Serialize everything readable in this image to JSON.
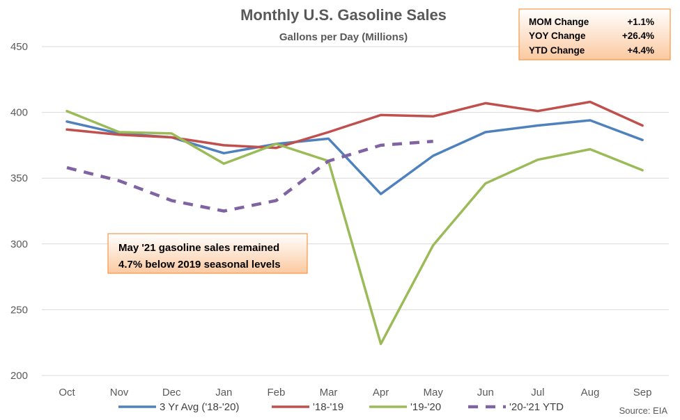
{
  "chart_data": {
    "type": "line",
    "title": "Monthly U.S. Gasoline Sales",
    "subtitle": "Gallons per Day (Millions)",
    "categories": [
      "Oct",
      "Nov",
      "Dec",
      "Jan",
      "Feb",
      "Mar",
      "Apr",
      "May",
      "Jun",
      "Jul",
      "Aug",
      "Sep"
    ],
    "ylim": [
      200,
      450
    ],
    "yticks": [
      200,
      250,
      300,
      350,
      400,
      450
    ],
    "grid": true,
    "legend_placement": "bottom",
    "series": [
      {
        "name": "3 Yr Avg ('18-'20)",
        "color": "#4f81bd",
        "dashed": false,
        "values": [
          393,
          384,
          381,
          369,
          376,
          380,
          338,
          367,
          385,
          390,
          394,
          379
        ]
      },
      {
        "name": "'18-'19",
        "color": "#c0504d",
        "dashed": false,
        "values": [
          387,
          383,
          381,
          375,
          373,
          385,
          398,
          397,
          407,
          401,
          408,
          390
        ]
      },
      {
        "name": "'19-'20",
        "color": "#9bbb59",
        "dashed": false,
        "values": [
          401,
          385,
          384,
          361,
          376,
          363,
          224,
          299,
          346,
          364,
          372,
          356
        ]
      },
      {
        "name": "'20-'21 YTD",
        "color": "#8064a2",
        "dashed": true,
        "values": [
          358,
          348,
          333,
          325,
          333,
          363,
          375,
          378,
          null,
          null,
          null,
          null
        ]
      }
    ],
    "summary_box": [
      {
        "label": "MOM Change",
        "value": "+1.1%"
      },
      {
        "label": "YOY Change",
        "value": "+26.4%"
      },
      {
        "label": "YTD Change",
        "value": "+4.4%"
      }
    ],
    "annotation": {
      "line1": "May '21 gasoline sales remained",
      "line2": "4.7% below 2019 seasonal levels"
    },
    "source": "Source: EIA"
  }
}
